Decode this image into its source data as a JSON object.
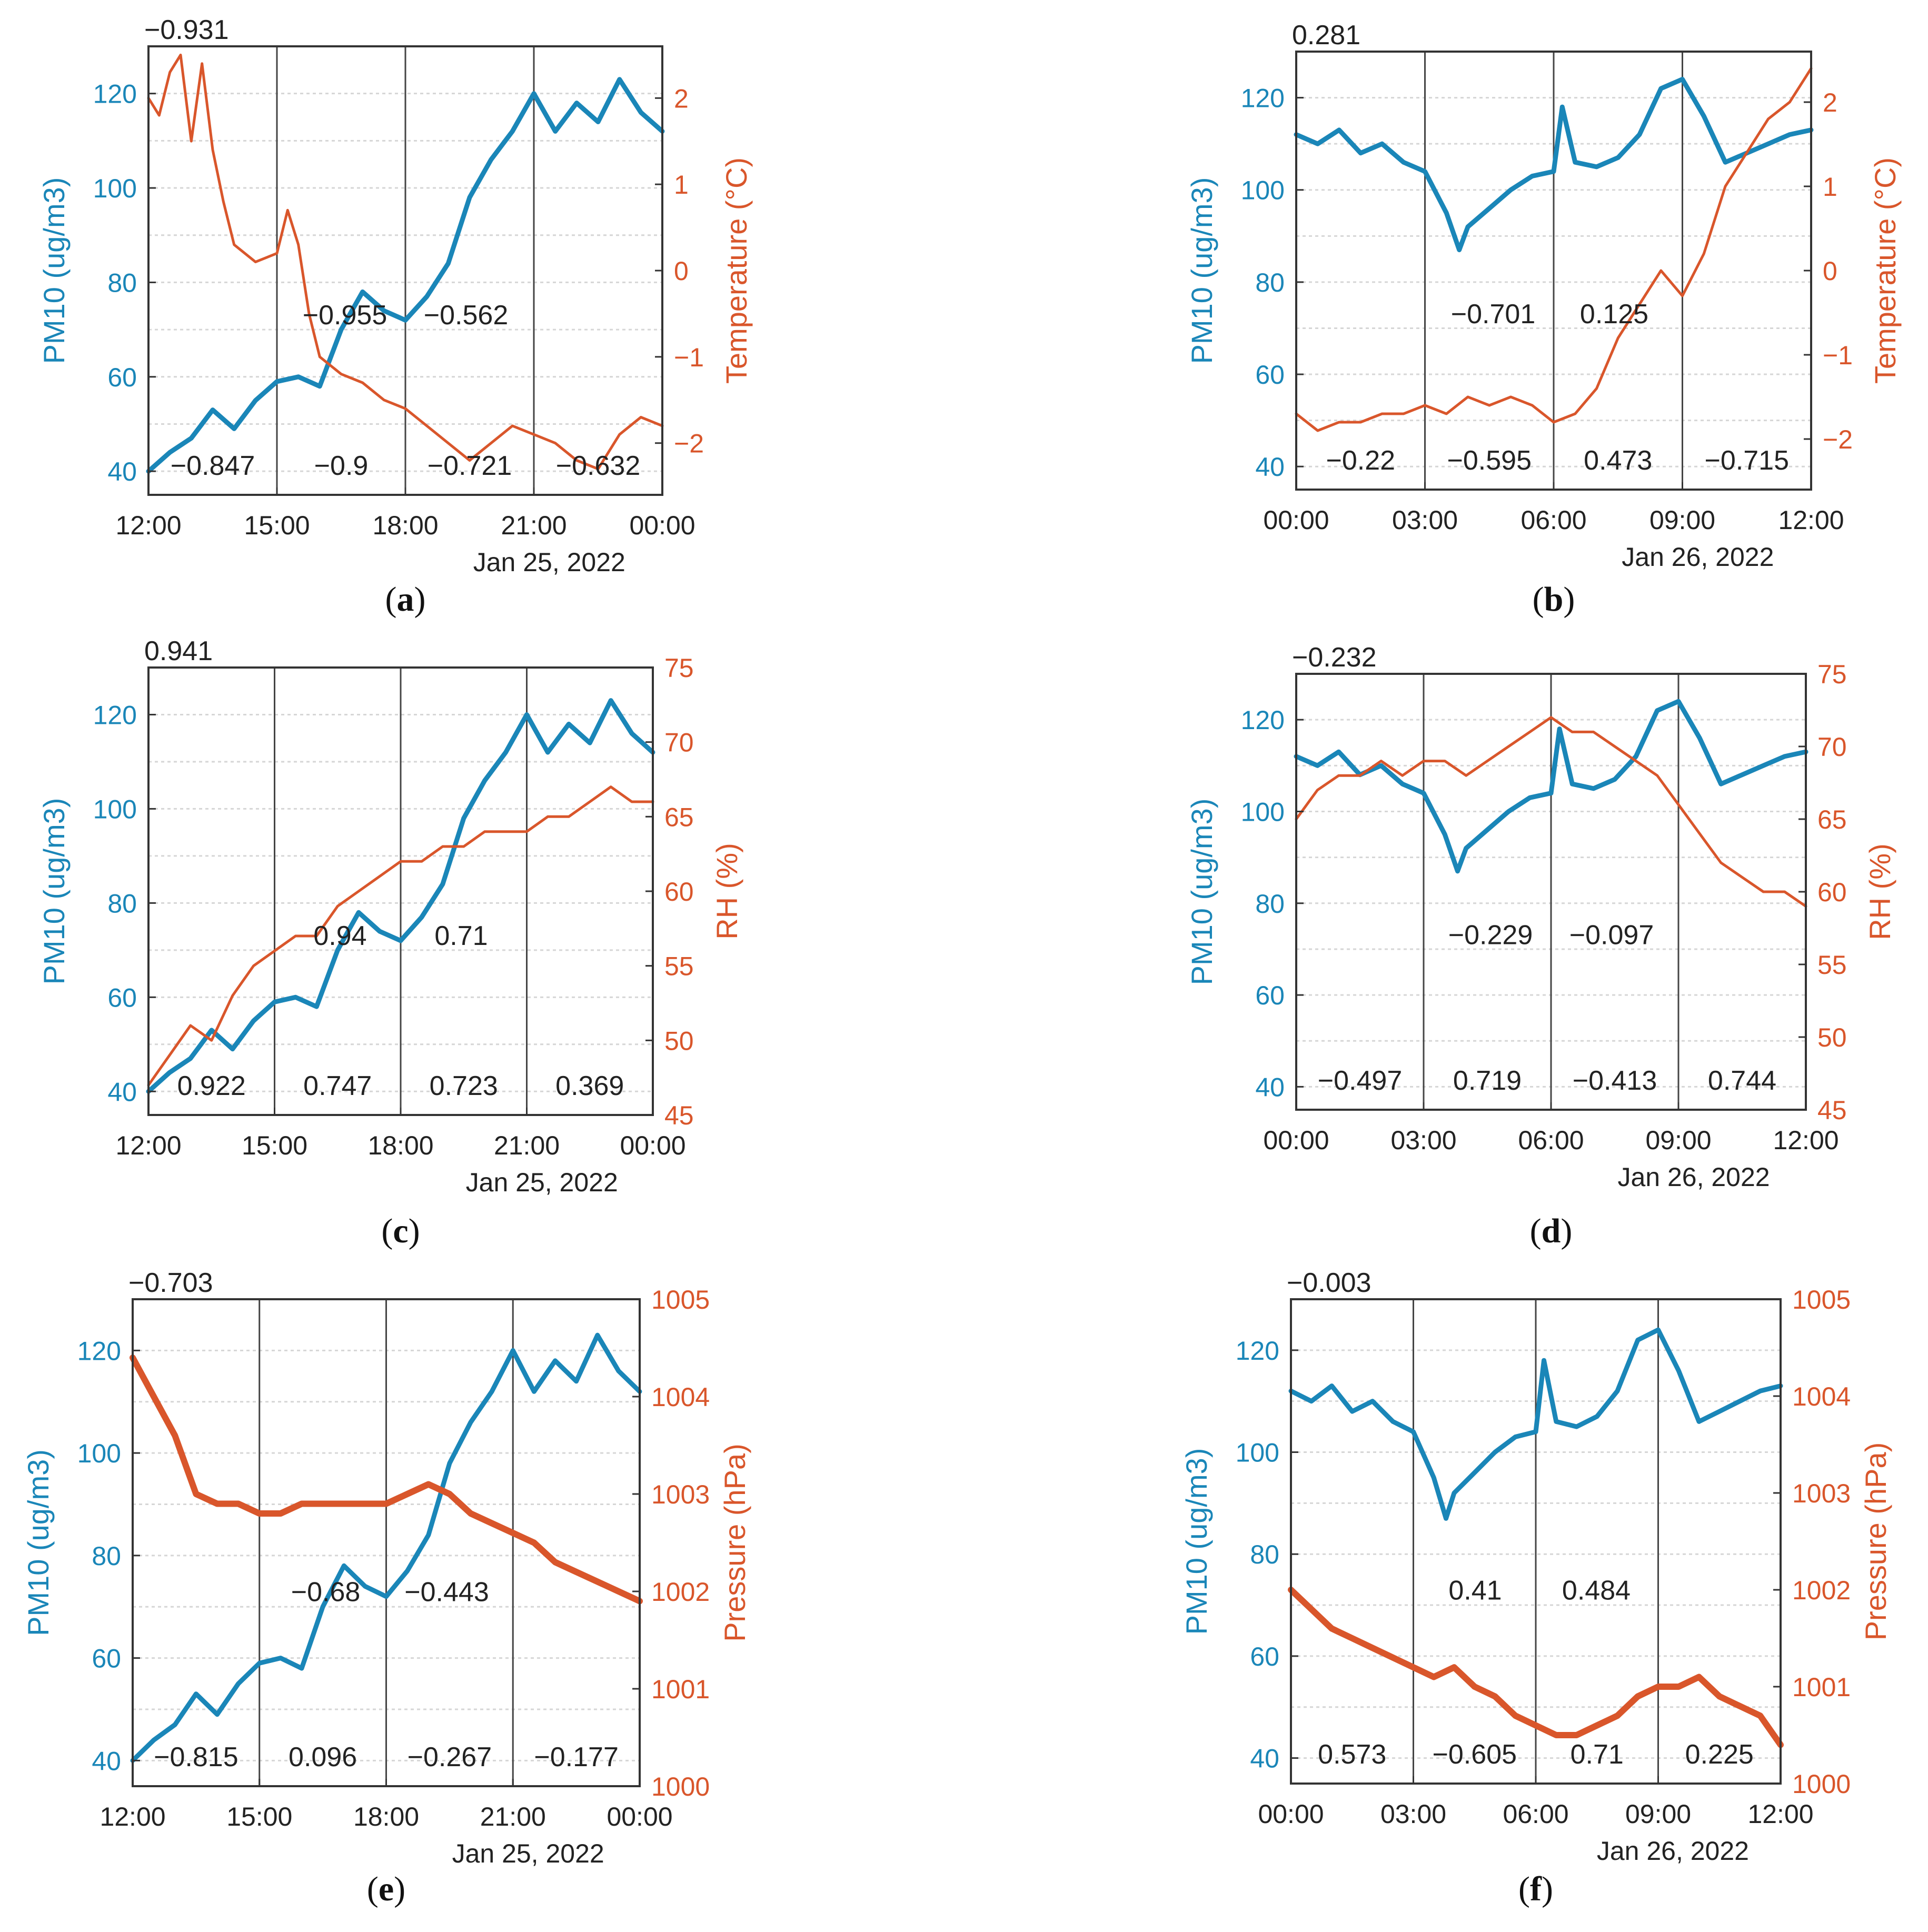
{
  "colors": {
    "pm10": "#1a86b8",
    "env": "#d9562b",
    "text": "#222222",
    "axis": "#333333",
    "grid": "#d6d6d6",
    "divider": "#444444"
  },
  "chart_data": [
    {
      "id": "a",
      "type": "line",
      "caption": "a",
      "x_ticks": [
        "12:00",
        "15:00",
        "18:00",
        "21:00",
        "00:00"
      ],
      "date_label": "Jan 25, 2022",
      "ylabel_left": "PM10 (ug/m3)",
      "ylabel_right": "Temperature (°C)",
      "ylim_left": [
        35,
        130
      ],
      "yticks_left": [
        40,
        60,
        80,
        100,
        120
      ],
      "ylim_right": [
        -2.6,
        2.6
      ],
      "yticks_right": [
        -2,
        -1,
        0,
        1,
        2
      ],
      "right_tick_labels": [
        "−2",
        "−1",
        "0",
        "1",
        "2"
      ],
      "overall_corr": "−0.931",
      "top_corrs": [
        "−0.955",
        "−0.562"
      ],
      "bottom_corrs": [
        "−0.847",
        "−0.9",
        "−0.721",
        "−0.632"
      ],
      "series": [
        {
          "name": "PM10",
          "axis": "left",
          "x": [
            0,
            0.5,
            1,
            1.5,
            2,
            2.5,
            3,
            3.5,
            4,
            4.5,
            5,
            5.5,
            6,
            6.5,
            7,
            7.5,
            8,
            8.5,
            9,
            9.5,
            10,
            10.5,
            11,
            11.5,
            12
          ],
          "values": [
            40,
            44,
            47,
            53,
            49,
            55,
            59,
            60,
            58,
            70,
            78,
            74,
            72,
            77,
            84,
            98,
            106,
            112,
            120,
            112,
            118,
            114,
            123,
            116,
            112
          ]
        },
        {
          "name": "Temperature",
          "axis": "right",
          "x": [
            0,
            0.25,
            0.5,
            0.75,
            1,
            1.25,
            1.5,
            1.75,
            2,
            2.5,
            3,
            3.25,
            3.5,
            3.75,
            4,
            4.5,
            5,
            5.5,
            6,
            6.5,
            7,
            7.5,
            8,
            8.5,
            9,
            9.5,
            10,
            10.5,
            11,
            11.5,
            12
          ],
          "values": [
            2.0,
            1.8,
            2.3,
            2.5,
            1.5,
            2.4,
            1.4,
            0.8,
            0.3,
            0.1,
            0.2,
            0.7,
            0.3,
            -0.5,
            -1.0,
            -1.2,
            -1.3,
            -1.5,
            -1.6,
            -1.8,
            -2.0,
            -2.2,
            -2.0,
            -1.8,
            -1.9,
            -2.0,
            -2.2,
            -2.3,
            -1.9,
            -1.7,
            -1.8
          ]
        }
      ]
    },
    {
      "id": "b",
      "type": "line",
      "caption": "b",
      "x_ticks": [
        "00:00",
        "03:00",
        "06:00",
        "09:00",
        "12:00"
      ],
      "date_label": "Jan 26, 2022",
      "ylabel_left": "PM10 (ug/m3)",
      "ylabel_right": "Temperature (°C)",
      "ylim_left": [
        35,
        130
      ],
      "yticks_left": [
        40,
        60,
        80,
        100,
        120
      ],
      "ylim_right": [
        -2.6,
        2.6
      ],
      "yticks_right": [
        -2,
        -1,
        0,
        1,
        2
      ],
      "right_tick_labels": [
        "−2",
        "−1",
        "0",
        "1",
        "2"
      ],
      "overall_corr": "0.281",
      "top_corrs": [
        "−0.701",
        "0.125"
      ],
      "bottom_corrs": [
        "−0.22",
        "−0.595",
        "0.473",
        "−0.715"
      ],
      "series": [
        {
          "name": "PM10",
          "axis": "left",
          "x": [
            0,
            0.5,
            1,
            1.5,
            2,
            2.5,
            3,
            3.5,
            3.8,
            4,
            4.5,
            5,
            5.5,
            6,
            6.2,
            6.5,
            7,
            7.5,
            8,
            8.5,
            9,
            9.5,
            10,
            10.5,
            11,
            11.5,
            12
          ],
          "values": [
            112,
            110,
            113,
            108,
            110,
            106,
            104,
            95,
            87,
            92,
            96,
            100,
            103,
            104,
            118,
            106,
            105,
            107,
            112,
            122,
            124,
            116,
            106,
            108,
            110,
            112,
            113
          ]
        },
        {
          "name": "Temperature",
          "axis": "right",
          "x": [
            0,
            0.5,
            1,
            1.5,
            2,
            2.5,
            3,
            3.5,
            4,
            4.5,
            5,
            5.5,
            6,
            6.5,
            7,
            7.5,
            8,
            8.5,
            9,
            9.5,
            10,
            10.5,
            11,
            11.5,
            12
          ],
          "values": [
            -1.7,
            -1.9,
            -1.8,
            -1.8,
            -1.7,
            -1.7,
            -1.6,
            -1.7,
            -1.5,
            -1.6,
            -1.5,
            -1.6,
            -1.8,
            -1.7,
            -1.4,
            -0.8,
            -0.4,
            0.0,
            -0.3,
            0.2,
            1.0,
            1.4,
            1.8,
            2.0,
            2.4
          ]
        }
      ]
    },
    {
      "id": "c",
      "type": "line",
      "caption": "c",
      "x_ticks": [
        "12:00",
        "15:00",
        "18:00",
        "21:00",
        "00:00"
      ],
      "date_label": "Jan 25, 2022",
      "ylabel_left": "PM10 (ug/m3)",
      "ylabel_right": "RH (%)",
      "ylim_left": [
        35,
        130
      ],
      "yticks_left": [
        40,
        60,
        80,
        100,
        120
      ],
      "ylim_right": [
        45,
        75
      ],
      "yticks_right": [
        45,
        50,
        55,
        60,
        65,
        70,
        75
      ],
      "right_tick_labels": [
        "45",
        "50",
        "55",
        "60",
        "65",
        "70",
        "75"
      ],
      "overall_corr": "0.941",
      "top_corrs": [
        "0.94",
        "0.71"
      ],
      "bottom_corrs": [
        "0.922",
        "0.747",
        "0.723",
        "0.369"
      ],
      "series": [
        {
          "name": "PM10",
          "axis": "left",
          "x": [
            0,
            0.5,
            1,
            1.5,
            2,
            2.5,
            3,
            3.5,
            4,
            4.5,
            5,
            5.5,
            6,
            6.5,
            7,
            7.5,
            8,
            8.5,
            9,
            9.5,
            10,
            10.5,
            11,
            11.5,
            12
          ],
          "values": [
            40,
            44,
            47,
            53,
            49,
            55,
            59,
            60,
            58,
            70,
            78,
            74,
            72,
            77,
            84,
            98,
            106,
            112,
            120,
            112,
            118,
            114,
            123,
            116,
            112
          ]
        },
        {
          "name": "RH",
          "axis": "right",
          "x": [
            0,
            0.5,
            1,
            1.5,
            2,
            2.5,
            3,
            3.5,
            4,
            4.5,
            5,
            5.5,
            6,
            6.5,
            7,
            7.5,
            8,
            8.5,
            9,
            9.5,
            10,
            10.5,
            11,
            11.5,
            12
          ],
          "values": [
            47,
            49,
            51,
            50,
            53,
            55,
            56,
            57,
            57,
            59,
            60,
            61,
            62,
            62,
            63,
            63,
            64,
            64,
            64,
            65,
            65,
            66,
            67,
            66,
            66
          ]
        }
      ]
    },
    {
      "id": "d",
      "type": "line",
      "caption": "d",
      "x_ticks": [
        "00:00",
        "03:00",
        "06:00",
        "09:00",
        "12:00"
      ],
      "date_label": "Jan 26, 2022",
      "ylabel_left": "PM10 (ug/m3)",
      "ylabel_right": "RH (%)",
      "ylim_left": [
        35,
        130
      ],
      "yticks_left": [
        40,
        60,
        80,
        100,
        120
      ],
      "ylim_right": [
        45,
        75
      ],
      "yticks_right": [
        45,
        50,
        55,
        60,
        65,
        70,
        75
      ],
      "right_tick_labels": [
        "45",
        "50",
        "55",
        "60",
        "65",
        "70",
        "75"
      ],
      "overall_corr": "−0.232",
      "top_corrs": [
        "−0.229",
        "−0.097"
      ],
      "bottom_corrs": [
        "−0.497",
        "0.719",
        "−0.413",
        "0.744"
      ],
      "series": [
        {
          "name": "PM10",
          "axis": "left",
          "x": [
            0,
            0.5,
            1,
            1.5,
            2,
            2.5,
            3,
            3.5,
            3.8,
            4,
            4.5,
            5,
            5.5,
            6,
            6.2,
            6.5,
            7,
            7.5,
            8,
            8.5,
            9,
            9.5,
            10,
            10.5,
            11,
            11.5,
            12
          ],
          "values": [
            112,
            110,
            113,
            108,
            110,
            106,
            104,
            95,
            87,
            92,
            96,
            100,
            103,
            104,
            118,
            106,
            105,
            107,
            112,
            122,
            124,
            116,
            106,
            108,
            110,
            112,
            113
          ]
        },
        {
          "name": "RH",
          "axis": "right",
          "x": [
            0,
            0.5,
            1,
            1.5,
            2,
            2.5,
            3,
            3.5,
            4,
            4.5,
            5,
            5.5,
            6,
            6.5,
            7,
            7.5,
            8,
            8.5,
            9,
            9.5,
            10,
            10.5,
            11,
            11.5,
            12
          ],
          "values": [
            65,
            67,
            68,
            68,
            69,
            68,
            69,
            69,
            68,
            69,
            70,
            71,
            72,
            71,
            71,
            70,
            69,
            68,
            66,
            64,
            62,
            61,
            60,
            60,
            59
          ]
        }
      ]
    },
    {
      "id": "e",
      "type": "line",
      "caption": "e",
      "x_ticks": [
        "12:00",
        "15:00",
        "18:00",
        "21:00",
        "00:00"
      ],
      "date_label": "Jan 25, 2022",
      "ylabel_left": "PM10 (ug/m3)",
      "ylabel_right": "Pressure (hPa)",
      "ylim_left": [
        35,
        130
      ],
      "yticks_left": [
        40,
        60,
        80,
        100,
        120
      ],
      "ylim_right": [
        1000,
        1005
      ],
      "yticks_right": [
        1000,
        1001,
        1002,
        1003,
        1004,
        1005
      ],
      "right_tick_labels": [
        "1000",
        "1001",
        "1002",
        "1003",
        "1004",
        "1005"
      ],
      "overall_corr": "−0.703",
      "top_corrs": [
        "−0.68",
        "−0.443"
      ],
      "bottom_corrs": [
        "−0.815",
        "0.096",
        "−0.267",
        "−0.177"
      ],
      "series": [
        {
          "name": "PM10",
          "axis": "left",
          "x": [
            0,
            0.5,
            1,
            1.5,
            2,
            2.5,
            3,
            3.5,
            4,
            4.5,
            5,
            5.5,
            6,
            6.5,
            7,
            7.5,
            8,
            8.5,
            9,
            9.5,
            10,
            10.5,
            11,
            11.5,
            12
          ],
          "values": [
            40,
            44,
            47,
            53,
            49,
            55,
            59,
            60,
            58,
            70,
            78,
            74,
            72,
            77,
            84,
            98,
            106,
            112,
            120,
            112,
            118,
            114,
            123,
            116,
            112
          ]
        },
        {
          "name": "Pressure",
          "axis": "right",
          "x": [
            0,
            0.5,
            1,
            1.5,
            2,
            2.5,
            3,
            3.5,
            4,
            4.5,
            5,
            5.5,
            6,
            6.5,
            7,
            7.5,
            8,
            8.5,
            9,
            9.5,
            10,
            10.5,
            11,
            11.5,
            12
          ],
          "values": [
            1004.4,
            1004.0,
            1003.6,
            1003.0,
            1002.9,
            1002.9,
            1002.8,
            1002.8,
            1002.9,
            1002.9,
            1002.9,
            1002.9,
            1002.9,
            1003.0,
            1003.1,
            1003.0,
            1002.8,
            1002.7,
            1002.6,
            1002.5,
            1002.3,
            1002.2,
            1002.1,
            1002.0,
            1001.9
          ]
        }
      ]
    },
    {
      "id": "f",
      "type": "line",
      "caption": "f",
      "x_ticks": [
        "00:00",
        "03:00",
        "06:00",
        "09:00",
        "12:00"
      ],
      "date_label": "Jan 26, 2022",
      "ylabel_left": "PM10 (ug/m3)",
      "ylabel_right": "Pressure (hPa)",
      "ylim_left": [
        35,
        130
      ],
      "yticks_left": [
        40,
        60,
        80,
        100,
        120
      ],
      "ylim_right": [
        1000,
        1005
      ],
      "yticks_right": [
        1000,
        1001,
        1002,
        1003,
        1004,
        1005
      ],
      "right_tick_labels": [
        "1000",
        "1001",
        "1002",
        "1003",
        "1004",
        "1005"
      ],
      "overall_corr": "−0.003",
      "top_corrs": [
        "0.41",
        "0.484"
      ],
      "bottom_corrs": [
        "0.573",
        "−0.605",
        "0.71",
        "0.225"
      ],
      "series": [
        {
          "name": "PM10",
          "axis": "left",
          "x": [
            0,
            0.5,
            1,
            1.5,
            2,
            2.5,
            3,
            3.5,
            3.8,
            4,
            4.5,
            5,
            5.5,
            6,
            6.2,
            6.5,
            7,
            7.5,
            8,
            8.5,
            9,
            9.5,
            10,
            10.5,
            11,
            11.5,
            12
          ],
          "values": [
            112,
            110,
            113,
            108,
            110,
            106,
            104,
            95,
            87,
            92,
            96,
            100,
            103,
            104,
            118,
            106,
            105,
            107,
            112,
            122,
            124,
            116,
            106,
            108,
            110,
            112,
            113
          ]
        },
        {
          "name": "Pressure",
          "axis": "right",
          "x": [
            0,
            0.5,
            1,
            1.5,
            2,
            2.5,
            3,
            3.5,
            4,
            4.5,
            5,
            5.5,
            6,
            6.5,
            7,
            7.5,
            8,
            8.5,
            9,
            9.5,
            10,
            10.5,
            11,
            11.5,
            12
          ],
          "values": [
            1002.0,
            1001.8,
            1001.6,
            1001.5,
            1001.4,
            1001.3,
            1001.2,
            1001.1,
            1001.2,
            1001.0,
            1000.9,
            1000.7,
            1000.6,
            1000.5,
            1000.5,
            1000.6,
            1000.7,
            1000.9,
            1001.0,
            1001.0,
            1001.1,
            1000.9,
            1000.8,
            1000.7,
            1000.4
          ]
        }
      ]
    }
  ]
}
